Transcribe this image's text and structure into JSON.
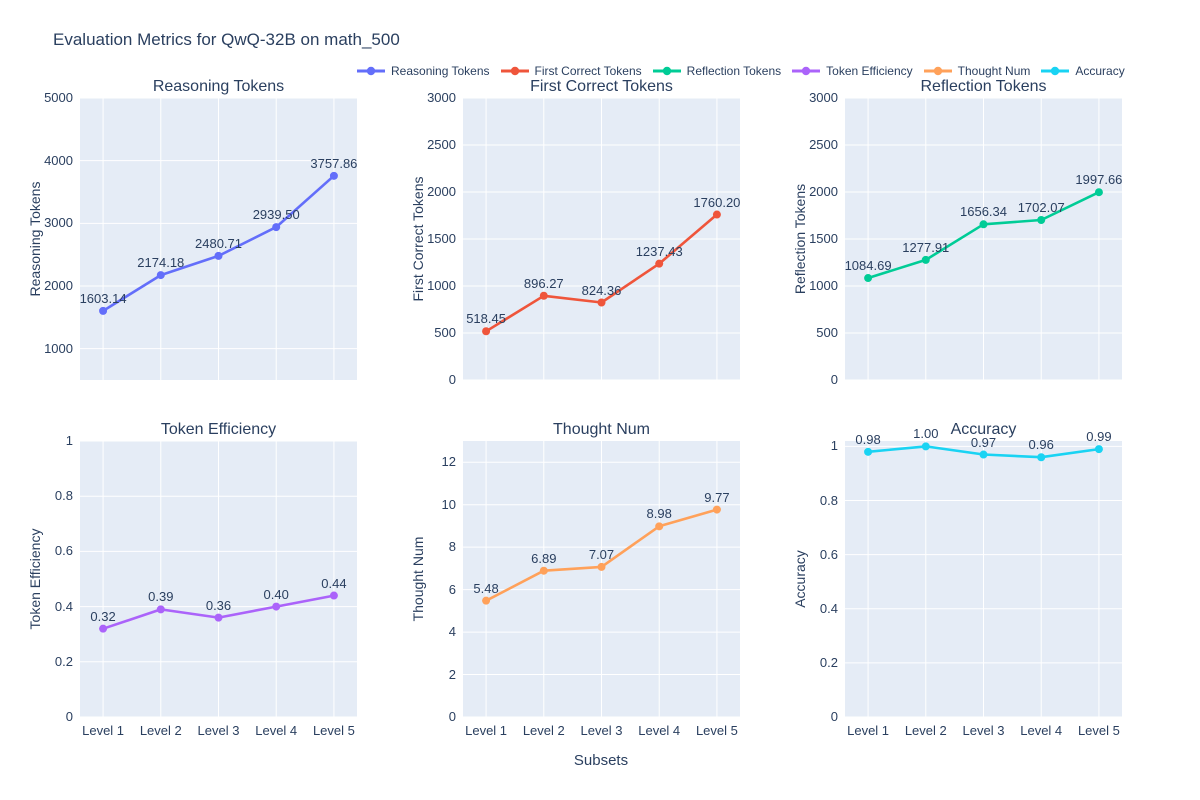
{
  "title": "Evaluation Metrics for QwQ-32B on math_500",
  "x_axis_title": "Subsets",
  "colors": {
    "background": "#ffffff",
    "panel_background": "#e5ecf6",
    "grid": "#ffffff",
    "text": "#2a3f5f"
  },
  "legend": {
    "position": "top",
    "entries": [
      {
        "label": "Reasoning Tokens",
        "color": "#636efa"
      },
      {
        "label": "First Correct Tokens",
        "color": "#ef553b"
      },
      {
        "label": "Reflection Tokens",
        "color": "#00cc96"
      },
      {
        "label": "Token Efficiency",
        "color": "#ab63fa"
      },
      {
        "label": "Thought Num",
        "color": "#ffa15a"
      },
      {
        "label": "Accuracy",
        "color": "#19d3f3"
      }
    ]
  },
  "chart_data": {
    "type": "line",
    "title": "Evaluation Metrics for QwQ-32B on math_500",
    "xlabel": "Subsets",
    "layout_hint": "2 rows x 3 columns of subplots, shared categorical x-axis, legend at top, grid on, markers with value labels",
    "categories": [
      "Level 1",
      "Level 2",
      "Level 3",
      "Level 4",
      "Level 5"
    ],
    "subplots": [
      {
        "title": "Reasoning Tokens",
        "ylabel": "Reasoning Tokens",
        "color": "#636efa",
        "values": [
          1603.14,
          2174.18,
          2480.71,
          2939.5,
          3757.86
        ],
        "point_labels": [
          "1603.14",
          "2174.18",
          "2480.71",
          "2939.50",
          "3757.86"
        ],
        "ylim": [
          500,
          5000
        ],
        "yticks": [
          1000,
          2000,
          3000,
          4000,
          5000
        ],
        "ytick_labels": [
          "1000",
          "2000",
          "3000",
          "4000",
          "5000"
        ],
        "show_x_tick_labels": false
      },
      {
        "title": "First Correct Tokens",
        "ylabel": "First Correct Tokens",
        "color": "#ef553b",
        "values": [
          518.45,
          896.27,
          824.36,
          1237.43,
          1760.2
        ],
        "point_labels": [
          "518.45",
          "896.27",
          "824.36",
          "1237.43",
          "1760.20"
        ],
        "ylim": [
          0,
          3000
        ],
        "yticks": [
          0,
          500,
          1000,
          1500,
          2000,
          2500,
          3000
        ],
        "ytick_labels": [
          "0",
          "500",
          "1000",
          "1500",
          "2000",
          "2500",
          "3000"
        ],
        "show_x_tick_labels": false
      },
      {
        "title": "Reflection Tokens",
        "ylabel": "Reflection Tokens",
        "color": "#00cc96",
        "values": [
          1084.69,
          1277.91,
          1656.34,
          1702.07,
          1997.66
        ],
        "point_labels": [
          "1084.69",
          "1277.91",
          "1656.34",
          "1702.07",
          "1997.66"
        ],
        "ylim": [
          0,
          3000
        ],
        "yticks": [
          0,
          500,
          1000,
          1500,
          2000,
          2500,
          3000
        ],
        "ytick_labels": [
          "0",
          "500",
          "1000",
          "1500",
          "2000",
          "2500",
          "3000"
        ],
        "show_x_tick_labels": false
      },
      {
        "title": "Token Efficiency",
        "ylabel": "Token Efficiency",
        "color": "#ab63fa",
        "values": [
          0.32,
          0.39,
          0.36,
          0.4,
          0.44
        ],
        "point_labels": [
          "0.32",
          "0.39",
          "0.36",
          "0.40",
          "0.44"
        ],
        "ylim": [
          0,
          1
        ],
        "yticks": [
          0,
          0.2,
          0.4,
          0.6,
          0.8,
          1
        ],
        "ytick_labels": [
          "0",
          "0.2",
          "0.4",
          "0.6",
          "0.8",
          "1"
        ],
        "show_x_tick_labels": true
      },
      {
        "title": "Thought Num",
        "ylabel": "Thought Num",
        "color": "#ffa15a",
        "values": [
          5.48,
          6.89,
          7.07,
          8.98,
          9.77
        ],
        "point_labels": [
          "5.48",
          "6.89",
          "7.07",
          "8.98",
          "9.77"
        ],
        "ylim": [
          0,
          13
        ],
        "yticks": [
          0,
          2,
          4,
          6,
          8,
          10,
          12
        ],
        "ytick_labels": [
          "0",
          "2",
          "4",
          "6",
          "8",
          "10",
          "12"
        ],
        "show_x_tick_labels": true
      },
      {
        "title": "Accuracy",
        "ylabel": "Accuracy",
        "color": "#19d3f3",
        "values": [
          0.98,
          1.0,
          0.97,
          0.96,
          0.99
        ],
        "point_labels": [
          "0.98",
          "1.00",
          "0.97",
          "0.96",
          "0.99"
        ],
        "ylim": [
          0,
          1.02
        ],
        "yticks": [
          0,
          0.2,
          0.4,
          0.6,
          0.8,
          1
        ],
        "ytick_labels": [
          "0",
          "0.2",
          "0.4",
          "0.6",
          "0.8",
          "1"
        ],
        "show_x_tick_labels": true
      }
    ]
  }
}
